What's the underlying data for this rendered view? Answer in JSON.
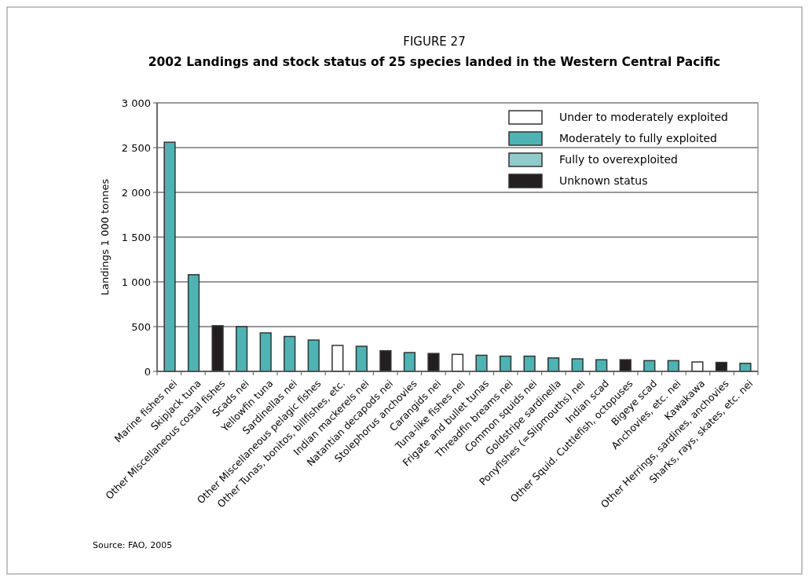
{
  "chart_data": {
    "type": "bar",
    "title": "FIGURE 27",
    "subtitle": "2002 Landings and stock status of 25 species landed in the Western Central Pacific",
    "ylabel": "Landings 1 000 tonnes",
    "categories": [
      "Marine fishes nei",
      "Skipjack tuna",
      "Other Miscellaneous costal fishes",
      "Scads nei",
      "Yellowfin tuna",
      "Sardinellas nei",
      "Other Miscellaneous pelagic fishes",
      "Other Tunas, bonitos, billfishes, etc.",
      "Indian mackerels nei",
      "Natantian decapods nei",
      "Stolephorus anchovies",
      "Carangids nei",
      "Tuna-like fishes nei",
      "Frigate and bullet tunas",
      "Threadfin breams nei",
      "Common squids nei",
      "Goldstripe sardinella",
      "Ponyfishes (=Slipmouths) nei",
      "Indian scad",
      "Other Squid. Cuttlefish, octopuses",
      "Bigeye scad",
      "Anchovies, etc. nei",
      "Kawakawa",
      "Other Herrings, sardines, anchovies",
      "Sharks, rays, skates, etc. nei"
    ],
    "stacked": true,
    "series": [
      {
        "name": "Under to moderately exploited",
        "color": "#ffffff",
        "values": [
          null,
          null,
          null,
          null,
          null,
          null,
          null,
          290,
          null,
          null,
          null,
          null,
          190,
          null,
          null,
          null,
          null,
          null,
          null,
          null,
          null,
          null,
          105,
          null,
          null
        ]
      },
      {
        "name": "Moderately to fully exploited",
        "color": "#4fb3b3",
        "values": [
          2560,
          1080,
          null,
          500,
          430,
          390,
          350,
          null,
          280,
          null,
          210,
          null,
          null,
          180,
          170,
          170,
          150,
          140,
          130,
          null,
          120,
          120,
          null,
          null,
          90
        ]
      },
      {
        "name": "Fully to overexploited",
        "color": "#8fcbcb",
        "values": [
          null,
          null,
          null,
          null,
          null,
          null,
          null,
          null,
          null,
          null,
          null,
          null,
          null,
          null,
          null,
          null,
          null,
          null,
          null,
          null,
          null,
          null,
          null,
          null,
          null
        ]
      },
      {
        "name": "Unknown status",
        "color": "#231f20",
        "values": [
          null,
          null,
          510,
          null,
          null,
          null,
          null,
          null,
          null,
          230,
          null,
          200,
          null,
          null,
          null,
          null,
          null,
          null,
          null,
          130,
          null,
          null,
          null,
          100,
          null
        ]
      }
    ],
    "ylim": [
      0,
      3000
    ],
    "yticks": [
      {
        "value": 0,
        "label": "0"
      },
      {
        "value": 500,
        "label": "500"
      },
      {
        "value": 1000,
        "label": "1 000"
      },
      {
        "value": 1500,
        "label": "1 500"
      },
      {
        "value": 2000,
        "label": "2 000"
      },
      {
        "value": 2500,
        "label": "2 500"
      },
      {
        "value": 3000,
        "label": "3 000"
      }
    ],
    "grid": "y",
    "legend": "top right",
    "annotations": [
      "Source: FAO, 2005"
    ]
  }
}
